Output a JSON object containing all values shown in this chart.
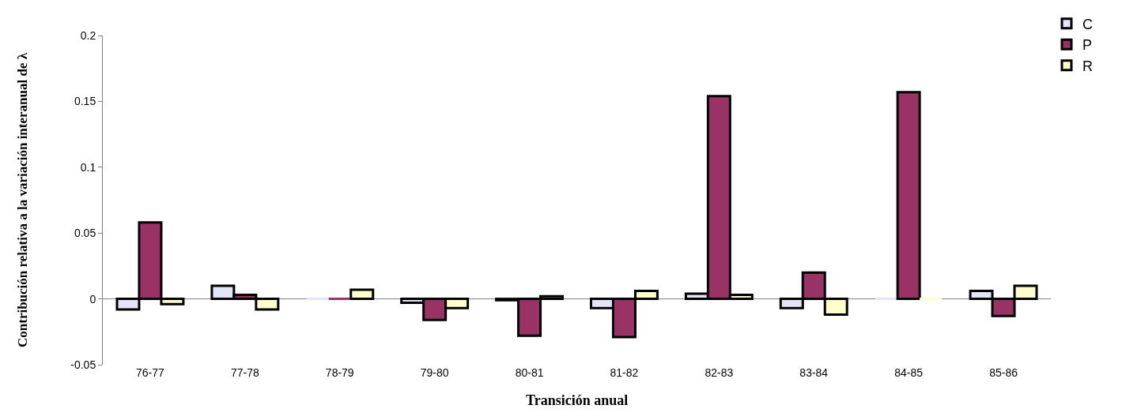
{
  "chart_data": {
    "type": "bar",
    "xlabel": "Transición anual",
    "ylabel": "Contribución relativa a la variación interanual de λ",
    "categories": [
      "76-77",
      "77-78",
      "78-79",
      "79-80",
      "80-81",
      "81-82",
      "82-83",
      "83-84",
      "84-85",
      "85-86"
    ],
    "series": [
      {
        "name": "C",
        "color": "#e4e4f8",
        "values": [
          -0.008,
          0.01,
          0,
          -0.003,
          -0.001,
          -0.007,
          0.004,
          -0.007,
          0,
          0.006
        ]
      },
      {
        "name": "P",
        "color": "#993366",
        "values": [
          0.058,
          0.003,
          0,
          -0.016,
          -0.028,
          -0.029,
          0.154,
          0.02,
          0.157,
          -0.013
        ]
      },
      {
        "name": "R",
        "color": "#ffffcc",
        "values": [
          -0.004,
          -0.008,
          0.007,
          -0.007,
          0.002,
          0.006,
          0.003,
          -0.012,
          0,
          0.01
        ]
      }
    ],
    "ylim": [
      -0.05,
      0.2
    ],
    "yticks": [
      -0.05,
      0,
      0.05,
      0.1,
      0.15,
      0.2
    ],
    "grid": false,
    "legend": "top right",
    "ref_lines": [
      {
        "axis": "y",
        "value": 0,
        "color": "#808080"
      }
    ]
  }
}
